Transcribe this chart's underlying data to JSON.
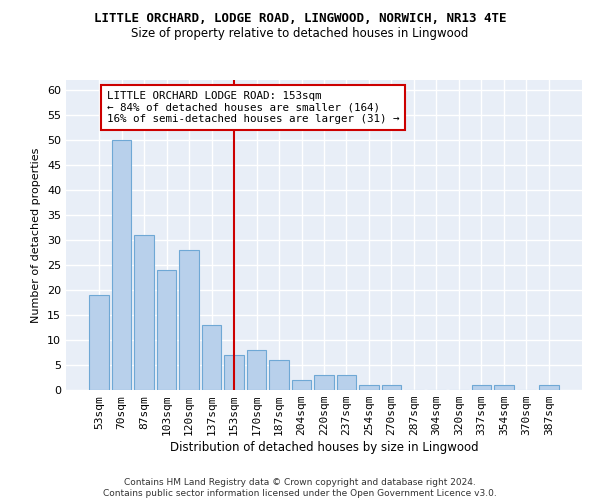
{
  "title": "LITTLE ORCHARD, LODGE ROAD, LINGWOOD, NORWICH, NR13 4TE",
  "subtitle": "Size of property relative to detached houses in Lingwood",
  "xlabel": "Distribution of detached houses by size in Lingwood",
  "ylabel": "Number of detached properties",
  "categories": [
    "53sqm",
    "70sqm",
    "87sqm",
    "103sqm",
    "120sqm",
    "137sqm",
    "153sqm",
    "170sqm",
    "187sqm",
    "204sqm",
    "220sqm",
    "237sqm",
    "254sqm",
    "270sqm",
    "287sqm",
    "304sqm",
    "320sqm",
    "337sqm",
    "354sqm",
    "370sqm",
    "387sqm"
  ],
  "values": [
    19,
    50,
    31,
    24,
    28,
    13,
    7,
    8,
    6,
    2,
    3,
    3,
    1,
    1,
    0,
    0,
    0,
    1,
    1,
    0,
    1
  ],
  "bar_color": "#b8d0eb",
  "bar_edge_color": "#6fa8d5",
  "highlight_index": 6,
  "highlight_line_color": "#cc0000",
  "annotation_text": "LITTLE ORCHARD LODGE ROAD: 153sqm\n← 84% of detached houses are smaller (164)\n16% of semi-detached houses are larger (31) →",
  "annotation_box_color": "#ffffff",
  "annotation_box_edge": "#cc0000",
  "ylim": [
    0,
    62
  ],
  "yticks": [
    0,
    5,
    10,
    15,
    20,
    25,
    30,
    35,
    40,
    45,
    50,
    55,
    60
  ],
  "background_color": "#e8eef7",
  "grid_color": "#ffffff",
  "footer_line1": "Contains HM Land Registry data © Crown copyright and database right 2024.",
  "footer_line2": "Contains public sector information licensed under the Open Government Licence v3.0."
}
